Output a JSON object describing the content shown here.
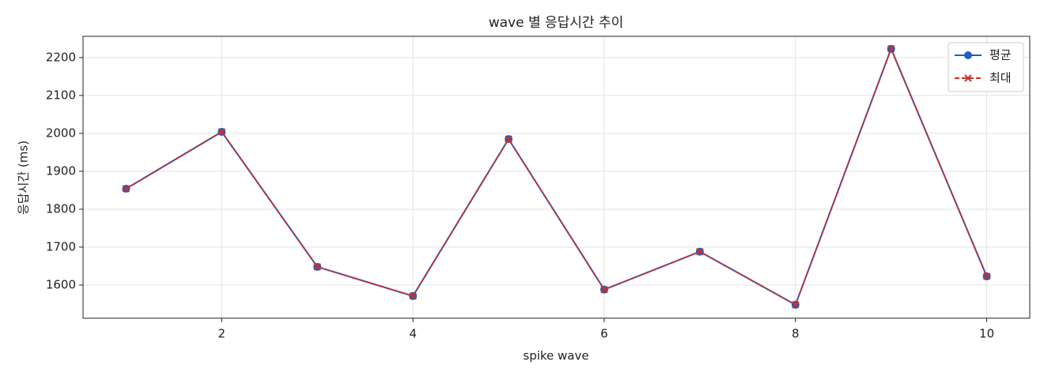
{
  "chart_data": {
    "type": "line",
    "title": "wave 별 응답시간 추이",
    "x_label": "spike wave",
    "y_label": "응답시간 (ms)",
    "x": [
      1,
      2,
      3,
      4,
      5,
      6,
      7,
      8,
      9,
      10
    ],
    "series": [
      {
        "name": "평균",
        "color": "#1f5fbf",
        "marker": "o",
        "dash": false,
        "values": [
          1854,
          2004,
          1648,
          1571,
          1985,
          1588,
          1688,
          1548,
          2223,
          1623
        ]
      },
      {
        "name": "최대",
        "color": "#c8302e",
        "marker": "x",
        "dash": true,
        "values": [
          1854,
          2004,
          1648,
          1571,
          1985,
          1588,
          1688,
          1548,
          2223,
          1623
        ]
      }
    ],
    "xlim": [
      0.55,
      10.45
    ],
    "xticks": [
      2,
      4,
      6,
      8,
      10
    ],
    "ylim": [
      1512.5,
      2256
    ],
    "yticks": [
      1600,
      1700,
      1800,
      1900,
      2000,
      2100,
      2200
    ],
    "grid": true,
    "legend": "upper-right"
  }
}
